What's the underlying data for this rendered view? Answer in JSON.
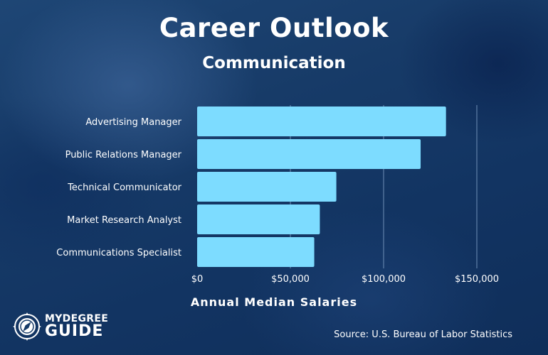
{
  "chart_data": {
    "type": "bar",
    "orientation": "horizontal",
    "title": "Career Outlook",
    "subtitle": "Communication",
    "categories": [
      "Advertising Manager",
      "Public Relations Manager",
      "Technical Communicator",
      "Market Research Analyst",
      "Communications Specialist"
    ],
    "values": [
      133460,
      119860,
      74650,
      65810,
      62810
    ],
    "xlabel": "Annual Median Salaries",
    "ylabel": "",
    "xlim": [
      0,
      150000
    ],
    "ticks": [
      0,
      50000,
      100000,
      150000
    ],
    "tick_labels": [
      "$0",
      "$50,000",
      "$100,000",
      "$150,000"
    ],
    "grid": true,
    "bar_color": "#7ddcff",
    "gridline_color": "#6f8fb6"
  },
  "branding": {
    "logo_line1": "MYDEGREE",
    "logo_line2": "GUIDE",
    "logo_icon": "compass-icon"
  },
  "source": "Source: U.S. Bureau of Labor Statistics"
}
